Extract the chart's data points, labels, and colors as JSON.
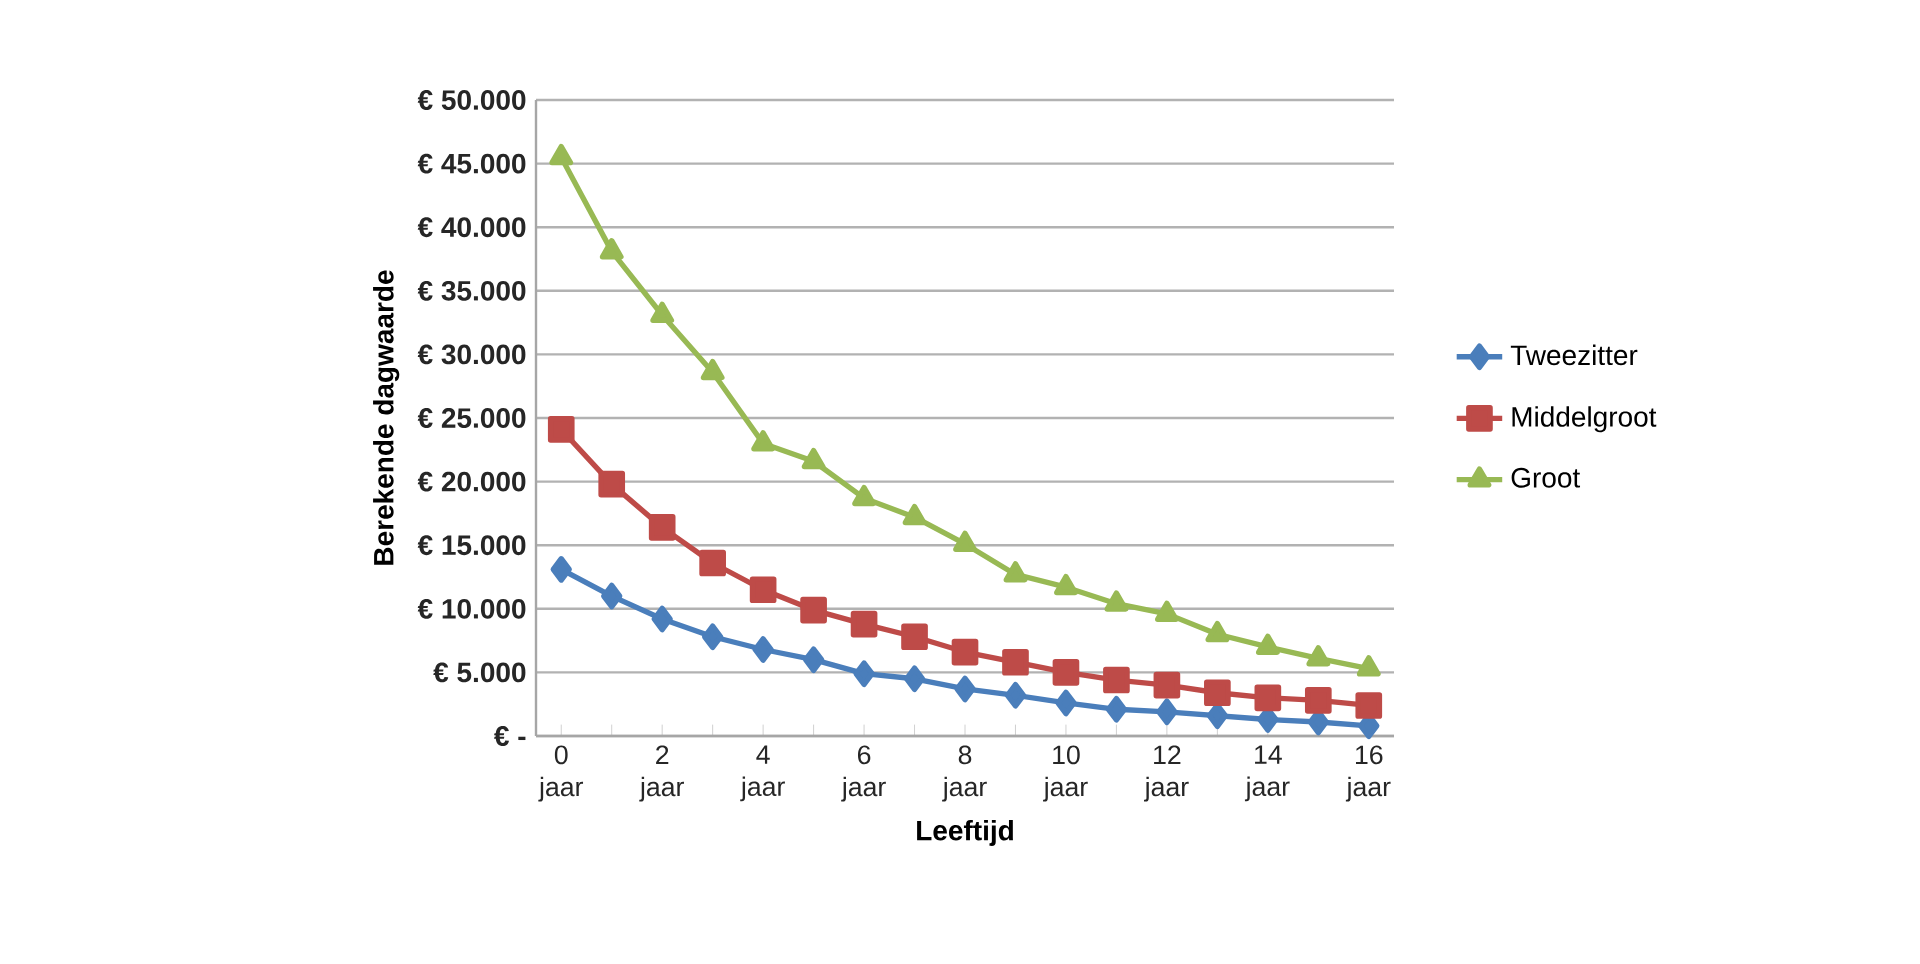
{
  "chart_data": {
    "type": "line",
    "xlabel": "Leeftijd",
    "ylabel": "Berekende dagwaarde",
    "categories": [
      "0 jaar",
      null,
      "2 jaar",
      null,
      "4 jaar",
      null,
      "6 jaar",
      null,
      "8 jaar",
      null,
      "10 jaar",
      null,
      "12 jaar",
      null,
      "14 jaar",
      null,
      "16 jaar"
    ],
    "series": [
      {
        "name": "Tweezitter",
        "color": "#4a7ebb",
        "marker": "diamond",
        "values": [
          13100,
          11000,
          9200,
          7800,
          6800,
          6000,
          4900,
          4500,
          3700,
          3200,
          2600,
          2100,
          1900,
          1600,
          1300,
          1100,
          800
        ]
      },
      {
        "name": "Middelgroot",
        "color": "#be4b48",
        "marker": "square",
        "values": [
          24100,
          19800,
          16400,
          13600,
          11500,
          9900,
          8800,
          7800,
          6600,
          5800,
          5000,
          4400,
          4000,
          3400,
          3000,
          2800,
          2400
        ]
      },
      {
        "name": "Groot",
        "color": "#98b954",
        "marker": "triangle",
        "values": [
          45500,
          38100,
          33100,
          28600,
          23000,
          21600,
          18700,
          17200,
          15100,
          12700,
          11700,
          10400,
          9600,
          8000,
          7000,
          6100,
          5300
        ]
      }
    ],
    "ylim": [
      0,
      50000
    ],
    "yticks": [
      {
        "value": 0,
        "label": "€ -"
      },
      {
        "value": 5000,
        "label": "€ 5.000"
      },
      {
        "value": 10000,
        "label": "€ 10.000"
      },
      {
        "value": 15000,
        "label": "€ 15.000"
      },
      {
        "value": 20000,
        "label": "€ 20.000"
      },
      {
        "value": 25000,
        "label": "€ 25.000"
      },
      {
        "value": 30000,
        "label": "€ 30.000"
      },
      {
        "value": 35000,
        "label": "€ 35.000"
      },
      {
        "value": 40000,
        "label": "€ 40.000"
      },
      {
        "value": 45000,
        "label": "€ 45.000"
      },
      {
        "value": 50000,
        "label": "€ 50.000"
      }
    ],
    "grid": "y",
    "legend": "right",
    "line_style": "solid"
  }
}
